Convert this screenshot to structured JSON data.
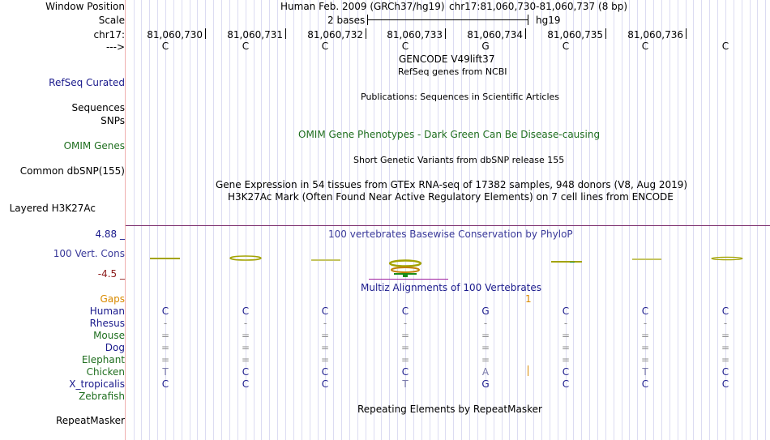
{
  "colors": {
    "navy": "#1a1a8c",
    "green": "#1f6e1f",
    "maroon": "#8b1a1a",
    "orange": "#d98a00",
    "olive": "#a3a300",
    "grey": "#8c8c8c",
    "blue_text": "#3a3a9a",
    "magenta": "#a020a0"
  },
  "header": {
    "window_position_label": "Window Position",
    "window_title_assembly": "Human Feb. 2009 (GRCh37/hg19)",
    "window_title_position": "chr17:81,060,730-81,060,737 (8 bp)",
    "scale_label": "Scale",
    "scale_text": "2 bases",
    "scale_assembly": "hg19",
    "chrom_label": "chr17:",
    "strand_label": "--->"
  },
  "positions": [
    "81,060,730",
    "81,060,731",
    "81,060,732",
    "81,060,733",
    "81,060,734",
    "81,060,735",
    "81,060,736"
  ],
  "reference_bases": [
    "C",
    "C",
    "C",
    "C",
    "G",
    "C",
    "C",
    "C"
  ],
  "tracks": {
    "gencode_title": "GENCODE V49lift37",
    "refseq_label": "RefSeq Curated",
    "refseq_title": "RefSeq genes from NCBI",
    "sequences_label": "Sequences",
    "publications_title": "Publications: Sequences in Scientific Articles",
    "snps_label": "SNPs",
    "omim_title": "OMIM Gene Phenotypes - Dark Green Can Be Disease-causing",
    "omim_label": "OMIM Genes",
    "dbsnp_title": "Short Genetic Variants from dbSNP release 155",
    "dbsnp_label": "Common dbSNP(155)",
    "gtex_title": "Gene Expression in 54 tissues from GTEx RNA-seq of 17382 samples, 948 donors (V8, Aug 2019)",
    "h3k27ac_title": "H3K27Ac Mark (Often Found Near Active Regulatory Elements) on 7 cell lines from ENCODE",
    "h3k27ac_label": "Layered H3K27Ac",
    "cons_ymax": "4.88 _",
    "cons_title": "100 vertebrates Basewise Conservation by PhyloP",
    "cons_label": "100 Vert. Cons",
    "cons_ymin": "-4.5 _",
    "multiz_title": "Multiz Alignments of 100 Vertebrates",
    "gaps_label": "Gaps",
    "gap_count": "1",
    "repeat_title": "Repeating Elements by RepeatMasker",
    "repeat_label": "RepeatMasker"
  },
  "alignment": [
    {
      "species": "Human",
      "bases": [
        "C",
        "C",
        "C",
        "C",
        "G",
        "C",
        "C",
        "C"
      ]
    },
    {
      "species": "Rhesus",
      "bases": [
        "-",
        "-",
        "-",
        "-",
        "-",
        "-",
        "-",
        "-"
      ]
    },
    {
      "species": "Mouse",
      "bases": [
        "=",
        "=",
        "=",
        "=",
        "=",
        "=",
        "=",
        "="
      ]
    },
    {
      "species": "Dog",
      "bases": [
        "=",
        "=",
        "=",
        "=",
        "=",
        "=",
        "=",
        "="
      ]
    },
    {
      "species": "Elephant",
      "bases": [
        "=",
        "=",
        "=",
        "=",
        "=",
        "=",
        "=",
        "="
      ]
    },
    {
      "species": "Chicken",
      "bases": [
        "T",
        "C",
        "C",
        "C",
        "A",
        "C",
        "T",
        "C"
      ]
    },
    {
      "species": "X_tropicalis",
      "bases": [
        "C",
        "C",
        "C",
        "T",
        "G",
        "C",
        "C",
        "C"
      ]
    },
    {
      "species": "Zebrafish",
      "bases": [
        "",
        "",
        "",
        "",
        "",
        "",
        "",
        ""
      ]
    }
  ]
}
